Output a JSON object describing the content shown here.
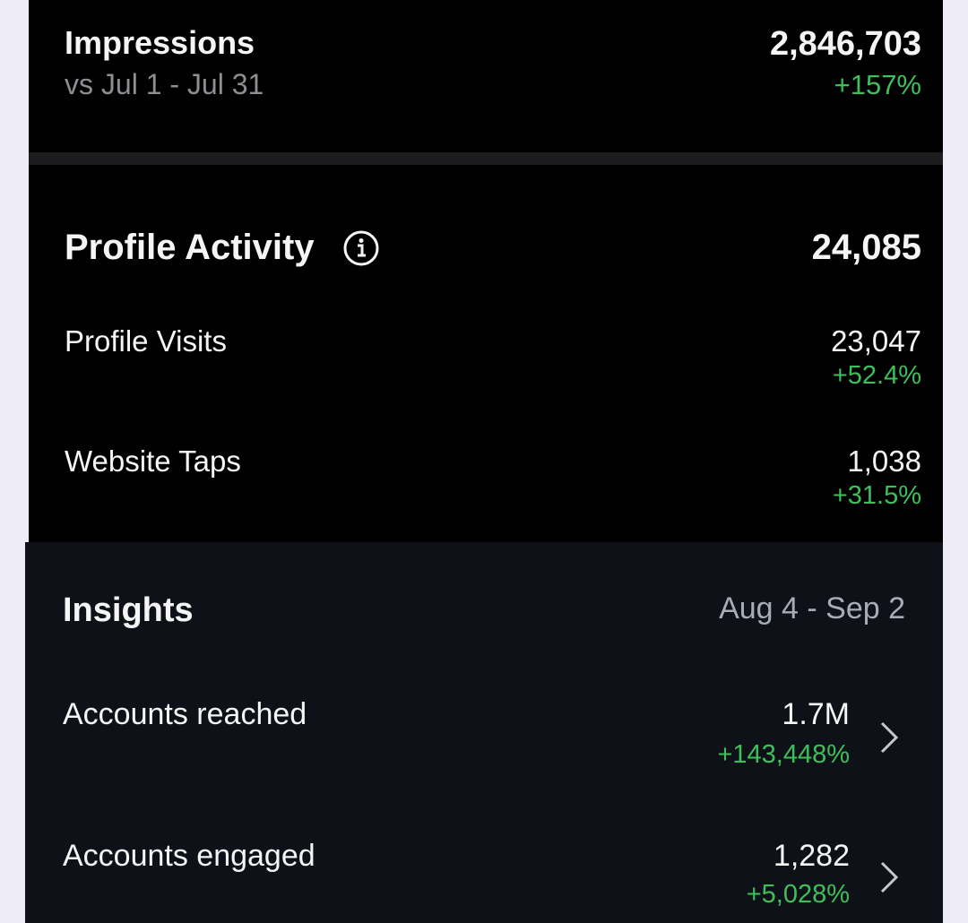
{
  "impressions": {
    "title": "Impressions",
    "subtitle": "vs Jul 1 - Jul 31",
    "value": "2,846,703",
    "change": "+157%"
  },
  "profile_activity": {
    "title": "Profile Activity",
    "total": "24,085",
    "rows": [
      {
        "label": "Profile Visits",
        "value": "23,047",
        "change": "+52.4%"
      },
      {
        "label": "Website Taps",
        "value": "1,038",
        "change": "+31.5%"
      }
    ]
  },
  "insights": {
    "title": "Insights",
    "date_range": "Aug 4 - Sep 2",
    "rows": [
      {
        "label": "Accounts reached",
        "value": "1.7M",
        "change": "+143,448%"
      },
      {
        "label": "Accounts engaged",
        "value": "1,282",
        "change": "+5,028%"
      }
    ]
  }
}
